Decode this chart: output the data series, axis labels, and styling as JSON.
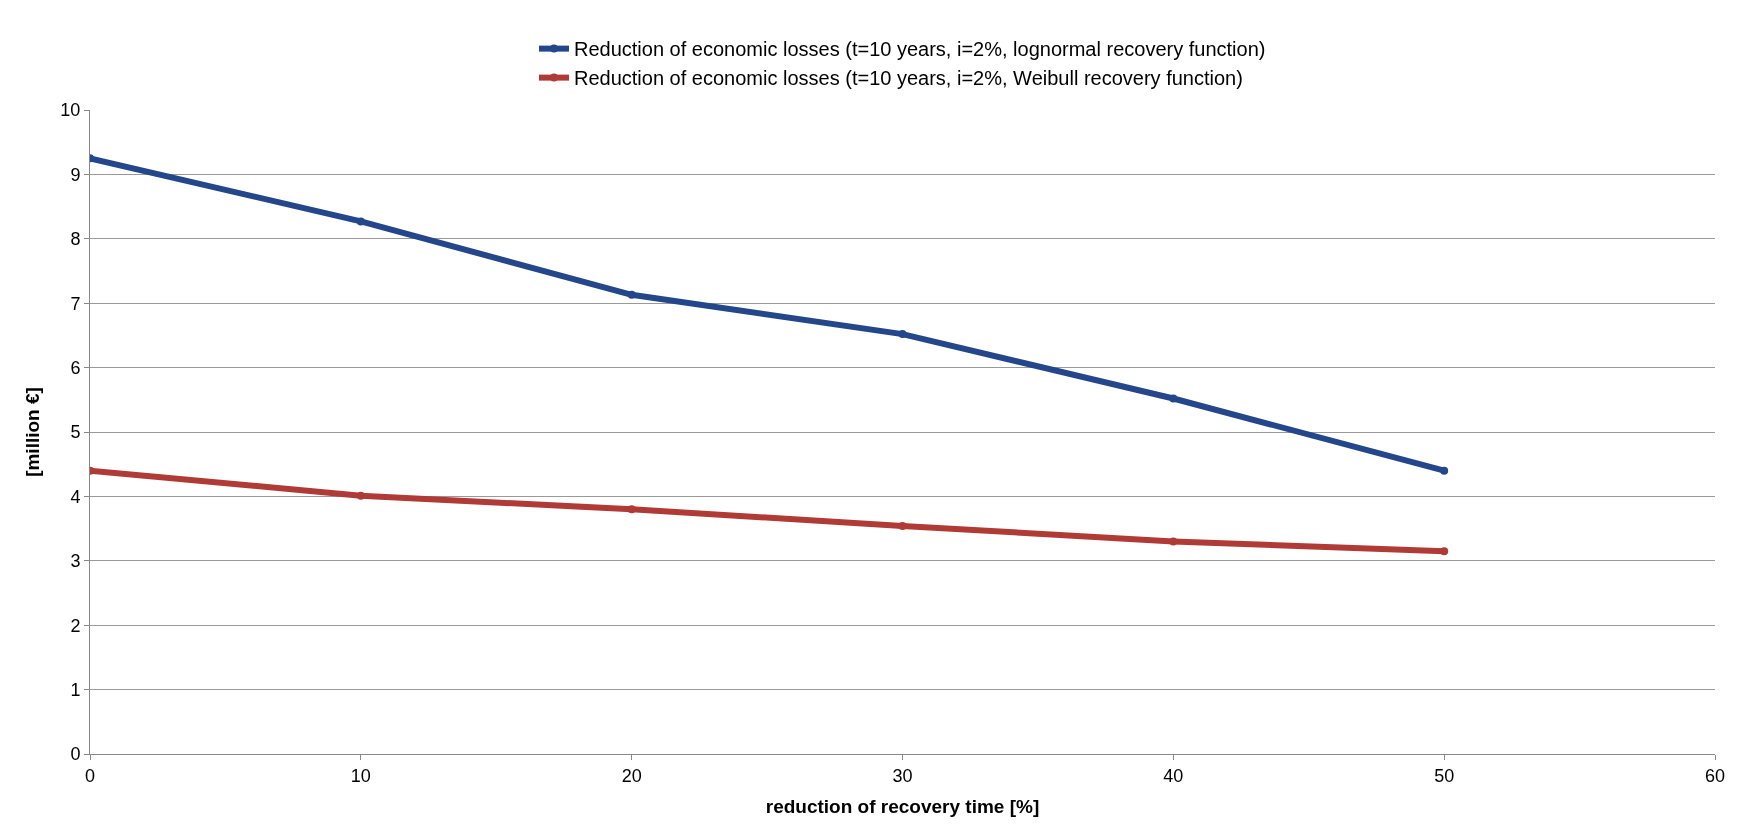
{
  "chart_data": {
    "type": "line",
    "xlabel": "reduction of recovery time [%]",
    "ylabel": "[million €]",
    "x": [
      0,
      10,
      20,
      30,
      40,
      50
    ],
    "series": [
      {
        "name": "Reduction of economic losses (t=10 years, i=2%, lognormal recovery function)",
        "color": "#23478a",
        "values": [
          9.25,
          8.27,
          7.13,
          6.52,
          5.52,
          4.4
        ]
      },
      {
        "name": "Reduction of economic losses (t=10 years, i=2%, Weibull recovery function)",
        "color": "#b03a35",
        "values": [
          4.4,
          4.01,
          3.8,
          3.54,
          3.3,
          3.15
        ]
      }
    ],
    "xlim": [
      0,
      60
    ],
    "xticks": [
      0,
      10,
      20,
      30,
      40,
      50,
      60
    ],
    "ylim": [
      0,
      10
    ],
    "yticks": [
      0,
      1,
      2,
      3,
      4,
      5,
      6,
      7,
      8,
      9,
      10
    ],
    "grid": "y",
    "legend": "top",
    "marker": "circle",
    "line_style": "solid"
  }
}
